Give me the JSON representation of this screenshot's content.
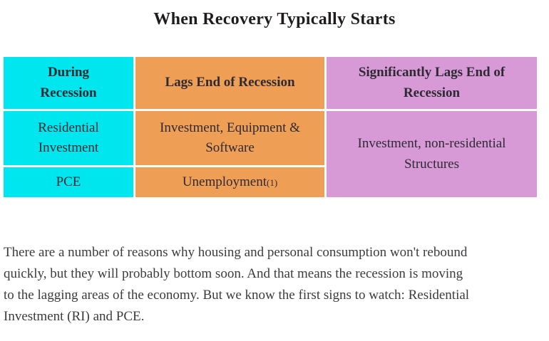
{
  "page": {
    "title": "When Recovery Typically Starts"
  },
  "table": {
    "columns": [
      {
        "header": "During Recession",
        "cells": [
          "Residential Investment",
          "PCE"
        ]
      },
      {
        "header": "Lags End of Recession",
        "cells": [
          "Investment, Equipment & Software",
          "Unemployment"
        ],
        "footnote_marker": "(1)"
      },
      {
        "header": "Significantly Lags End of Recession",
        "merged_cell": "Investment, non-residential Structures"
      }
    ],
    "colors": {
      "during_recession": "#00e6ee",
      "lags_end": "#ef9e55",
      "significantly_lags": "#d89ad6"
    }
  },
  "paragraph": {
    "lines": [
      "There are a number of reasons why housing and personal consumption won't rebound",
      "quickly, but they will probably bottom soon. And that means the recession is moving",
      "to the lagging areas of the economy. But we know the first signs to watch: Residential",
      "Investment (RI) and PCE."
    ]
  }
}
